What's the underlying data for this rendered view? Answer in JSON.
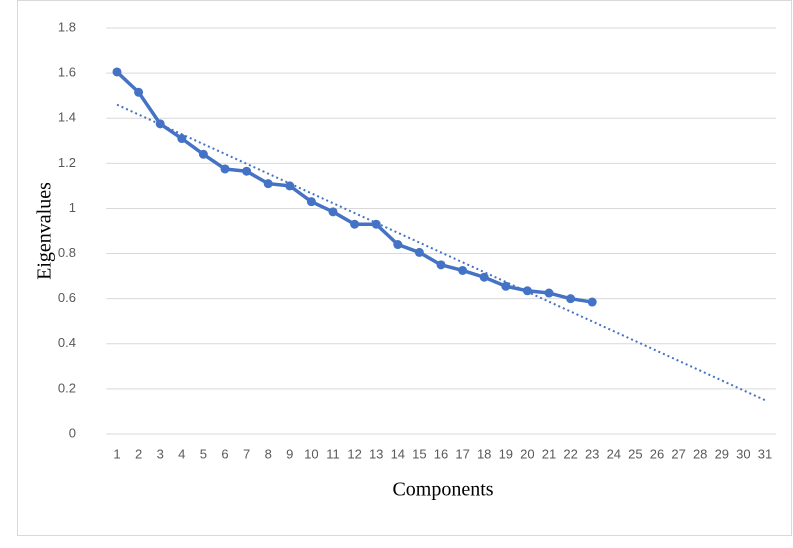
{
  "chart_data": {
    "type": "line",
    "xlabel": "Components",
    "ylabel": "Eigenvalues",
    "categories": [
      1,
      2,
      3,
      4,
      5,
      6,
      7,
      8,
      9,
      10,
      11,
      12,
      13,
      14,
      15,
      16,
      17,
      18,
      19,
      20,
      21,
      22,
      23,
      24,
      25,
      26,
      27,
      28,
      29,
      30,
      31
    ],
    "series": [
      {
        "color": "#4472c4",
        "values": [
          1.605,
          1.515,
          1.375,
          1.31,
          1.24,
          1.175,
          1.165,
          1.11,
          1.1,
          1.03,
          0.985,
          0.93,
          0.93,
          0.84,
          0.805,
          0.75,
          0.725,
          0.695,
          0.655,
          0.635,
          0.625,
          0.6,
          0.585,
          null,
          null,
          null,
          null,
          null,
          null,
          null,
          null
        ]
      }
    ],
    "trendline": {
      "x": [
        1,
        31
      ],
      "values": [
        1.46,
        0.15
      ],
      "color": "#4472c4",
      "style": "dotted"
    },
    "ylim": [
      0,
      1.8
    ],
    "yticks": [
      0,
      0.2,
      0.4,
      0.6,
      0.8,
      1,
      1.2,
      1.4,
      1.6,
      1.8
    ],
    "grid": true
  }
}
